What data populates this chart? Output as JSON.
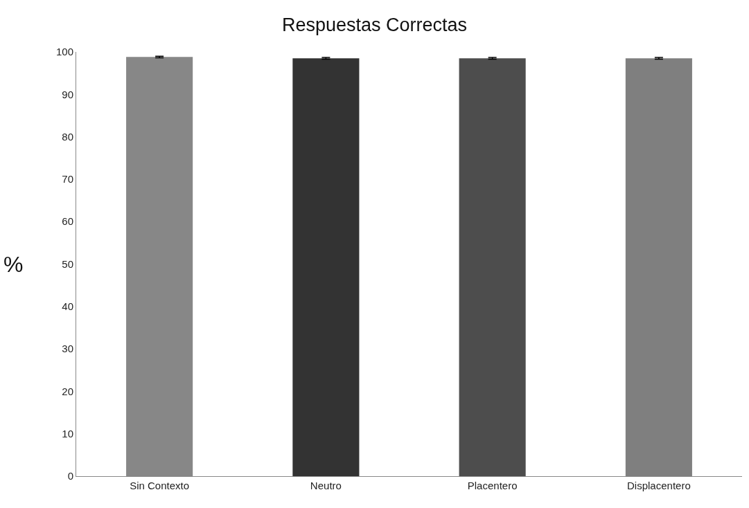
{
  "chart_data": {
    "type": "bar",
    "title": "Respuestas Correctas",
    "ylabel": "%",
    "categories": [
      "Sin Contexto",
      "Neutro",
      "Placentero",
      "Displacentero"
    ],
    "values": [
      98.8,
      98.5,
      98.5,
      98.5
    ],
    "errors": [
      0.2,
      0.2,
      0.2,
      0.2
    ],
    "colors": [
      "#878787",
      "#333333",
      "#4d4d4d",
      "#7f7f7f"
    ],
    "ylim": [
      0,
      100
    ],
    "yticks": [
      0,
      10,
      20,
      30,
      40,
      50,
      60,
      70,
      80,
      90,
      100
    ],
    "grid": false
  }
}
